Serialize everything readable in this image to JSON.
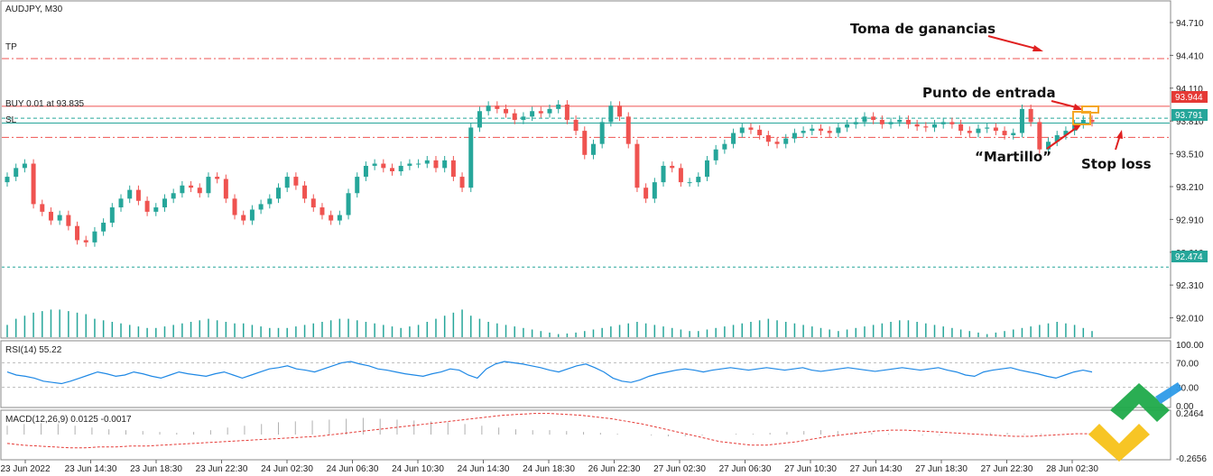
{
  "chart_data": {
    "type": "candlestick",
    "symbol_label": "AUDJPY, M30",
    "price_axis": {
      "min": 91.85,
      "max": 94.85,
      "ticks": [
        "94.710",
        "94.410",
        "94.110",
        "93.810",
        "93.510",
        "93.210",
        "92.910",
        "92.610",
        "92.310",
        "92.010"
      ]
    },
    "time_labels": [
      "23 Jun 2022",
      "23 Jun 14:30",
      "23 Jun 18:30",
      "23 Jun 22:30",
      "24 Jun 02:30",
      "24 Jun 06:30",
      "24 Jun 10:30",
      "24 Jun 14:30",
      "24 Jun 18:30",
      "26 Jun 22:30",
      "27 Jun 02:30",
      "27 Jun 06:30",
      "27 Jun 10:30",
      "27 Jun 14:30",
      "27 Jun 18:30",
      "27 Jun 22:30",
      "28 Jun 02:30"
    ],
    "colors": {
      "bull": "#26a69a",
      "bear": "#ef5350",
      "tp_sl": "#ef5350",
      "entry": "#e53935",
      "bid": "#26a69a",
      "annotation_arrow": "#e02020",
      "hammer_box": "#f5a623",
      "rsi": "#1e88e5",
      "macd_hist": "#b0b0b0",
      "macd_signal": "#e53935"
    },
    "levels": [
      {
        "name": "TP",
        "price": 94.38,
        "style": "dash-dot"
      },
      {
        "name": "BUY 0.01 at 93.835",
        "price": 93.835,
        "style": "dashed"
      },
      {
        "name": "SL",
        "price": 93.66,
        "style": "dash-dot"
      },
      {
        "name": "entry",
        "price": 93.944,
        "style": "solid",
        "tag": "93.944"
      },
      {
        "name": "bid",
        "price": 93.791,
        "style": "solid",
        "tag": "93.791"
      },
      {
        "name": "low",
        "price": 92.474,
        "style": "dotted",
        "tag": "92.474"
      }
    ],
    "candles_close": [
      93.3,
      93.38,
      93.42,
      93.05,
      92.98,
      92.9,
      92.95,
      92.85,
      92.72,
      92.7,
      92.8,
      92.88,
      93.02,
      93.1,
      93.18,
      93.08,
      92.98,
      93.02,
      93.1,
      93.15,
      93.22,
      93.2,
      93.15,
      93.3,
      93.28,
      93.1,
      92.95,
      92.9,
      93.0,
      93.05,
      93.1,
      93.2,
      93.3,
      93.22,
      93.1,
      93.02,
      92.95,
      92.9,
      92.95,
      93.15,
      93.3,
      93.4,
      93.42,
      93.38,
      93.35,
      93.4,
      93.42,
      93.42,
      93.45,
      93.38,
      93.45,
      93.3,
      93.2,
      93.75,
      93.9,
      93.95,
      93.92,
      93.88,
      93.82,
      93.85,
      93.9,
      93.88,
      93.92,
      93.96,
      93.82,
      93.72,
      93.5,
      93.6,
      93.8,
      93.95,
      93.85,
      93.6,
      93.2,
      93.1,
      93.25,
      93.4,
      93.38,
      93.25,
      93.25,
      93.3,
      93.45,
      93.55,
      93.6,
      93.7,
      93.75,
      93.73,
      93.68,
      93.62,
      93.6,
      93.65,
      93.7,
      93.72,
      93.74,
      93.72,
      93.7,
      93.75,
      93.78,
      93.8,
      93.85,
      93.82,
      93.78,
      93.8,
      93.82,
      93.78,
      93.76,
      93.75,
      93.78,
      93.8,
      93.78,
      93.72,
      93.7,
      93.74,
      93.75,
      93.72,
      93.68,
      93.7,
      93.92,
      93.8,
      93.55,
      93.62,
      93.68,
      93.72,
      93.78,
      93.82,
      93.8
    ],
    "volume_rel": [
      0.4,
      0.6,
      0.7,
      0.8,
      0.85,
      0.9,
      0.9,
      0.85,
      0.8,
      0.75,
      0.6,
      0.55,
      0.5,
      0.45,
      0.4,
      0.35,
      0.3,
      0.3,
      0.35,
      0.4,
      0.45,
      0.5,
      0.55,
      0.6,
      0.55,
      0.5,
      0.45,
      0.45,
      0.4,
      0.35,
      0.3,
      0.3,
      0.3,
      0.35,
      0.4,
      0.45,
      0.5,
      0.55,
      0.6,
      0.6,
      0.55,
      0.5,
      0.45,
      0.4,
      0.35,
      0.3,
      0.35,
      0.4,
      0.5,
      0.6,
      0.7,
      0.8,
      0.9,
      0.7,
      0.6,
      0.5,
      0.45,
      0.4,
      0.35,
      0.3,
      0.25,
      0.2,
      0.15,
      0.1,
      0.12,
      0.15,
      0.2,
      0.25,
      0.3,
      0.35,
      0.4,
      0.45,
      0.5,
      0.45,
      0.4,
      0.35,
      0.3,
      0.25,
      0.2,
      0.2,
      0.25,
      0.3,
      0.35,
      0.4,
      0.45,
      0.5,
      0.55,
      0.6,
      0.55,
      0.5,
      0.45,
      0.4,
      0.35,
      0.3,
      0.25,
      0.2,
      0.25,
      0.3,
      0.35,
      0.4,
      0.45,
      0.5,
      0.55,
      0.55,
      0.5,
      0.45,
      0.4,
      0.35,
      0.3,
      0.25,
      0.2,
      0.15,
      0.1,
      0.15,
      0.2,
      0.25,
      0.3,
      0.35,
      0.4,
      0.45,
      0.5,
      0.45,
      0.4,
      0.3,
      0.2
    ],
    "rsi": {
      "label": "RSI(14) 55.22",
      "ticks": [
        "100.00",
        "70.00",
        "30.00",
        "0.00"
      ],
      "min": 0,
      "max": 100,
      "values": [
        55,
        50,
        48,
        45,
        40,
        38,
        36,
        40,
        45,
        50,
        55,
        52,
        48,
        50,
        55,
        52,
        48,
        45,
        50,
        55,
        52,
        50,
        48,
        52,
        55,
        50,
        45,
        50,
        55,
        60,
        62,
        65,
        60,
        58,
        55,
        60,
        65,
        70,
        72,
        68,
        65,
        60,
        58,
        55,
        52,
        50,
        48,
        52,
        55,
        60,
        58,
        50,
        45,
        60,
        68,
        72,
        70,
        68,
        65,
        62,
        58,
        55,
        60,
        65,
        68,
        62,
        55,
        45,
        40,
        38,
        42,
        48,
        52,
        55,
        58,
        60,
        58,
        55,
        58,
        60,
        62,
        60,
        58,
        60,
        62,
        60,
        58,
        60,
        62,
        58,
        56,
        58,
        60,
        62,
        60,
        58,
        56,
        58,
        60,
        62,
        60,
        58,
        60,
        62,
        58,
        55,
        50,
        48,
        55,
        58,
        60,
        62,
        58,
        55,
        52,
        48,
        45,
        50,
        55,
        58,
        55
      ]
    },
    "macd": {
      "label": "MACD(12,26,9) 0.0125 -0.0017",
      "ticks": [
        "0.2464",
        "-0.2656"
      ],
      "min": -0.2656,
      "max": 0.2464,
      "signal": [
        -0.1,
        -0.12,
        -0.13,
        -0.14,
        -0.15,
        -0.15,
        -0.14,
        -0.14,
        -0.13,
        -0.13,
        -0.12,
        -0.11,
        -0.1,
        -0.09,
        -0.08,
        -0.07,
        -0.06,
        -0.05,
        -0.04,
        -0.03,
        -0.02,
        0.0,
        0.02,
        0.04,
        0.06,
        0.08,
        0.1,
        0.12,
        0.14,
        0.16,
        0.18,
        0.2,
        0.22,
        0.23,
        0.24,
        0.24,
        0.23,
        0.22,
        0.2,
        0.18,
        0.15,
        0.12,
        0.08,
        0.04,
        0.0,
        -0.04,
        -0.08,
        -0.1,
        -0.12,
        -0.12,
        -0.1,
        -0.08,
        -0.05,
        -0.02,
        0.0,
        0.02,
        0.04,
        0.05,
        0.05,
        0.04,
        0.03,
        0.02,
        0.01,
        0.0,
        -0.01,
        -0.02,
        -0.02,
        -0.01,
        0.0,
        0.01,
        0.01
      ],
      "hist": [
        0.1,
        0.12,
        0.13,
        0.12,
        0.1,
        0.08,
        0.06,
        0.05,
        0.04,
        0.03,
        0.02,
        0.03,
        0.05,
        0.08,
        0.1,
        0.12,
        0.14,
        0.15,
        0.16,
        0.17,
        0.18,
        0.19,
        0.18,
        0.17,
        0.16,
        0.15,
        0.14,
        0.12,
        0.1,
        0.08,
        0.06,
        0.05,
        0.05,
        0.04,
        0.03,
        0.02,
        0.01,
        0.0,
        -0.01,
        -0.02,
        -0.02,
        -0.01,
        0.0,
        0.01,
        0.01,
        0.02,
        0.03,
        0.04,
        0.05,
        0.04,
        0.03,
        0.02,
        0.01,
        0.0,
        -0.01,
        -0.01,
        0.0,
        0.01,
        0.02,
        0.02,
        0.01,
        0.01,
        0.0,
        0.0,
        0.01
      ]
    }
  },
  "annotations": {
    "take_profit": "Toma de ganancias",
    "entry_point": "Punto de entrada",
    "hammer": "“Martillo”",
    "stop_loss": "Stop loss"
  },
  "level_labels": {
    "tp": "TP",
    "buy": "BUY 0.01 at 93.835",
    "sl": "SL"
  },
  "price_tags": {
    "entry": "93.944",
    "bid": "93.791",
    "low": "92.474"
  }
}
